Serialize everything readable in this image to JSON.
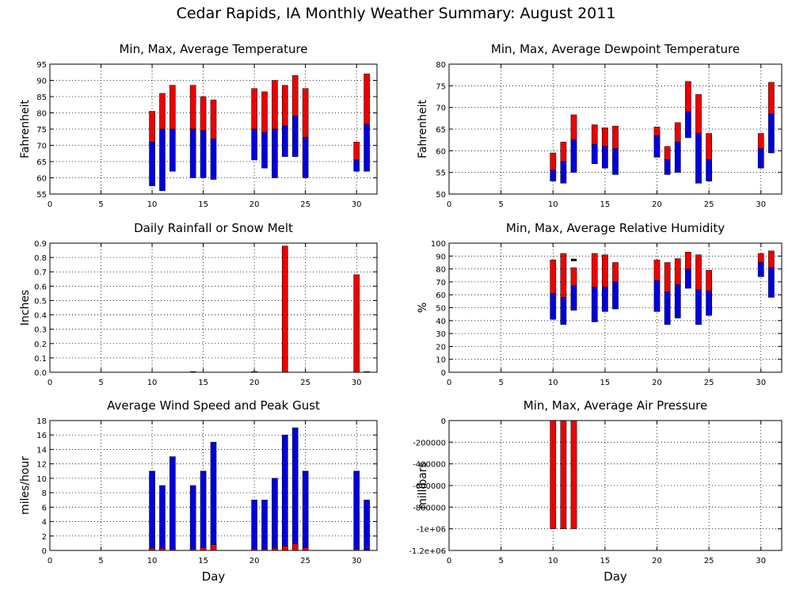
{
  "title": "Cedar Rapids, IA Monthly Weather Summary: August 2011",
  "colors": {
    "red": "#ee0000",
    "blue": "#0000dd",
    "black": "#000000"
  },
  "chart_data": [
    {
      "type": "bar",
      "title": "Min, Max, Average Temperature",
      "xlabel": "",
      "ylabel": "Fahrenheit",
      "xlim": [
        0,
        32
      ],
      "ylim": [
        55,
        95
      ],
      "xticks": [
        "0",
        "5",
        "10",
        "15",
        "20",
        "25",
        "30"
      ],
      "yticks": [
        "55",
        "60",
        "65",
        "70",
        "75",
        "80",
        "85",
        "90",
        "95"
      ],
      "grid": true,
      "days": [
        10,
        11,
        12,
        14,
        15,
        16,
        20,
        21,
        22,
        23,
        24,
        25,
        30,
        31
      ],
      "min": [
        57.5,
        56,
        62,
        60,
        60,
        59.5,
        65.5,
        63,
        60,
        66.5,
        66.5,
        60,
        62,
        62
      ],
      "average": [
        71,
        75,
        75,
        75,
        74.5,
        72,
        75,
        74,
        75,
        76,
        79,
        72.5,
        65.5,
        76.5
      ],
      "max": [
        80.5,
        86,
        88.5,
        88.5,
        85,
        84,
        87.5,
        86.5,
        90,
        88.5,
        91.5,
        87.5,
        71,
        92
      ]
    },
    {
      "type": "bar",
      "title": "Min, Max, Average Dewpoint Temperature",
      "xlabel": "",
      "ylabel": "Fahrenheit",
      "xlim": [
        0,
        32
      ],
      "ylim": [
        50,
        80
      ],
      "xticks": [
        "0",
        "5",
        "10",
        "15",
        "20",
        "25",
        "30"
      ],
      "yticks": [
        "50",
        "55",
        "60",
        "65",
        "70",
        "75",
        "80"
      ],
      "grid": true,
      "days": [
        10,
        11,
        12,
        14,
        15,
        16,
        20,
        21,
        22,
        23,
        24,
        25,
        30,
        31
      ],
      "min": [
        53,
        52.5,
        55,
        57,
        56,
        54.5,
        58.5,
        54.5,
        55,
        63,
        52.5,
        53,
        56,
        59.5
      ],
      "average": [
        55.5,
        57.5,
        62.5,
        61.5,
        61,
        60.5,
        63.5,
        58,
        62,
        69,
        64,
        58,
        60.5,
        68.5
      ],
      "max": [
        59.5,
        62,
        68.3,
        66,
        65.3,
        65.7,
        65.5,
        61,
        66.5,
        76,
        73,
        64,
        64,
        75.8
      ]
    },
    {
      "type": "bar",
      "title": "Daily Rainfall or Snow Melt",
      "xlabel": "",
      "ylabel": "Inches",
      "xlim": [
        0,
        32
      ],
      "ylim": [
        0,
        0.9
      ],
      "xticks": [
        "0",
        "5",
        "10",
        "15",
        "20",
        "25",
        "30"
      ],
      "yticks": [
        "0.0",
        "0.1",
        "0.2",
        "0.3",
        "0.4",
        "0.5",
        "0.6",
        "0.7",
        "0.8",
        "0.9"
      ],
      "grid": true,
      "days": [
        14,
        20,
        23,
        30,
        31
      ],
      "values": [
        0.005,
        0.005,
        0.88,
        0.68,
        0.005
      ]
    },
    {
      "type": "bar",
      "title": "Min, Max, Average Relative Humidity",
      "xlabel": "",
      "ylabel": "%",
      "xlim": [
        0,
        32
      ],
      "ylim": [
        0,
        100
      ],
      "xticks": [
        "0",
        "5",
        "10",
        "15",
        "20",
        "25",
        "30"
      ],
      "yticks": [
        "0",
        "10",
        "20",
        "30",
        "40",
        "50",
        "60",
        "70",
        "80",
        "90",
        "100"
      ],
      "grid": true,
      "days": [
        10,
        11,
        12,
        14,
        15,
        16,
        20,
        21,
        22,
        23,
        24,
        25,
        30,
        31
      ],
      "min": [
        41,
        37,
        48,
        39,
        47,
        49,
        47,
        37,
        42,
        65,
        37,
        44,
        74,
        58
      ],
      "average": [
        61,
        58,
        67,
        66,
        66,
        70,
        71,
        62,
        68,
        80,
        64,
        63,
        85,
        81
      ],
      "max": [
        87,
        92,
        81,
        92,
        91,
        85,
        87,
        85,
        88,
        93,
        91,
        79,
        92,
        94
      ],
      "extra_marks": [
        {
          "day": 12,
          "value": 87
        }
      ]
    },
    {
      "type": "bar",
      "title": "Average Wind Speed and Peak Gust",
      "xlabel": "Day",
      "ylabel": "miles/hour",
      "xlim": [
        0,
        32
      ],
      "ylim": [
        0,
        18
      ],
      "xticks": [
        "0",
        "5",
        "10",
        "15",
        "20",
        "25",
        "30"
      ],
      "yticks": [
        "0",
        "2",
        "4",
        "6",
        "8",
        "10",
        "12",
        "14",
        "16",
        "18"
      ],
      "grid": true,
      "days": [
        10,
        11,
        12,
        14,
        15,
        16,
        20,
        21,
        22,
        23,
        24,
        25,
        30,
        31
      ],
      "peak_gust": [
        11,
        9,
        13,
        9,
        11,
        15,
        7,
        7,
        10,
        16,
        17,
        11,
        11,
        7
      ],
      "avg_speed": [
        0.3,
        0.3,
        0.2,
        0.2,
        0.4,
        0.8,
        0.2,
        0.2,
        0.3,
        0.6,
        0.9,
        0.4,
        0.2,
        0.1
      ]
    },
    {
      "type": "bar",
      "title": "Min, Max, Average Air Pressure",
      "xlabel": "Day",
      "ylabel": "millibars",
      "xlim": [
        0,
        32
      ],
      "ylim": [
        -1200000,
        0
      ],
      "xticks": [
        "0",
        "5",
        "10",
        "15",
        "20",
        "25",
        "30"
      ],
      "yticks": [
        "-1.2e+06",
        "-1e+06",
        "-800000",
        "-600000",
        "-400000",
        "-200000",
        "0"
      ],
      "grid": true,
      "days": [
        10,
        11,
        12
      ],
      "top": [
        0,
        0,
        0
      ],
      "bottom": [
        -1000000,
        -1000000,
        -1000000
      ]
    }
  ]
}
